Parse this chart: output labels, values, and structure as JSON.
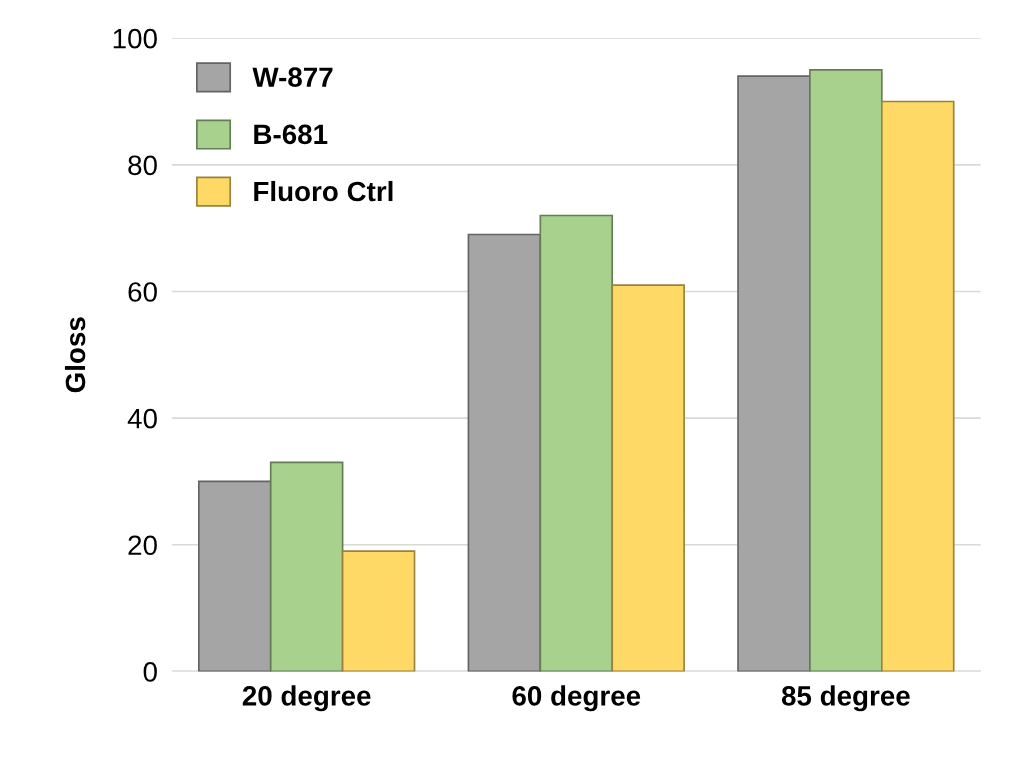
{
  "chart_data": {
    "type": "bar",
    "ylabel": "Gloss",
    "categories": [
      "20 degree",
      "60 degree",
      "85 degree"
    ],
    "series": [
      {
        "name": "W-877",
        "color": "#a5a5a5",
        "values": [
          30,
          69,
          94
        ]
      },
      {
        "name": "B-681",
        "color": "#a9d18e",
        "values": [
          33,
          72,
          95
        ]
      },
      {
        "name": "Fluoro Ctrl",
        "color": "#ffd966",
        "values": [
          19,
          61,
          90
        ]
      }
    ],
    "ylim": [
      0,
      100
    ],
    "yticks": [
      0,
      20,
      40,
      60,
      80,
      100
    ],
    "grid": "y",
    "legend": "top left"
  }
}
